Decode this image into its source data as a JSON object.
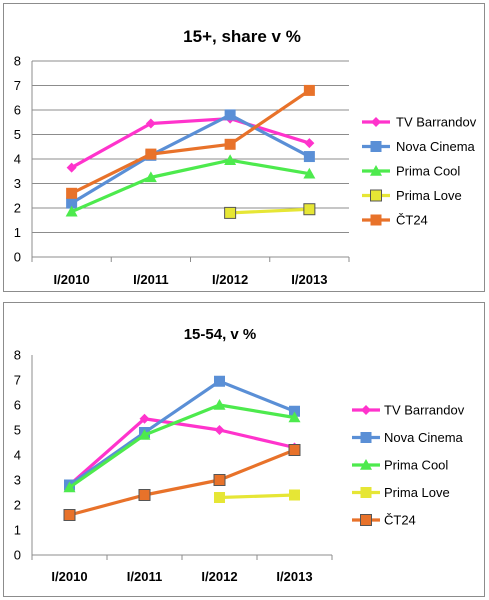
{
  "chart_data": [
    {
      "type": "line",
      "title": "15+, share v %",
      "categories": [
        "I/2010",
        "I/2011",
        "I/2012",
        "I/2013"
      ],
      "ylim": [
        0,
        8
      ],
      "yticks": [
        0,
        1,
        2,
        3,
        4,
        5,
        6,
        7,
        8
      ],
      "grid": true,
      "legend_position": "right",
      "series": [
        {
          "name": "TV Barrandov",
          "color": "#ff33cc",
          "marker": "diamond",
          "values": [
            3.65,
            5.45,
            5.65,
            4.65
          ]
        },
        {
          "name": "Nova Cinema",
          "color": "#5a8fd6",
          "marker": "square",
          "values": [
            2.2,
            4.15,
            5.8,
            4.1
          ]
        },
        {
          "name": "Prima Cool",
          "color": "#4dea4d",
          "marker": "triangle",
          "values": [
            1.85,
            3.25,
            3.95,
            3.4
          ]
        },
        {
          "name": "Prima Love",
          "color": "#e6e635",
          "marker": "square-outlined",
          "values": [
            null,
            null,
            1.8,
            1.95
          ]
        },
        {
          "name": "ČT24",
          "color": "#e8722a",
          "marker": "square",
          "values": [
            2.6,
            4.2,
            4.6,
            6.8
          ]
        }
      ]
    },
    {
      "type": "line",
      "title": "15-54, v %",
      "categories": [
        "I/2010",
        "I/2011",
        "I/2012",
        "I/2013"
      ],
      "ylim": [
        0,
        8
      ],
      "yticks": [
        0,
        1,
        2,
        3,
        4,
        5,
        6,
        7,
        8
      ],
      "grid": false,
      "legend_position": "right",
      "series": [
        {
          "name": "TV Barrandov",
          "color": "#ff33cc",
          "marker": "diamond",
          "values": [
            2.8,
            5.45,
            5.0,
            4.3
          ]
        },
        {
          "name": "Nova Cinema",
          "color": "#5a8fd6",
          "marker": "square",
          "values": [
            2.8,
            4.9,
            6.95,
            5.75
          ]
        },
        {
          "name": "Prima Cool",
          "color": "#4dea4d",
          "marker": "triangle",
          "values": [
            2.7,
            4.8,
            6.0,
            5.5
          ]
        },
        {
          "name": "Prima Love",
          "color": "#e6e635",
          "marker": "square",
          "values": [
            null,
            null,
            2.3,
            2.4
          ]
        },
        {
          "name": "ČT24",
          "color": "#e8722a",
          "marker": "square-outlined",
          "values": [
            1.6,
            2.4,
            3.0,
            4.2
          ]
        }
      ]
    }
  ]
}
